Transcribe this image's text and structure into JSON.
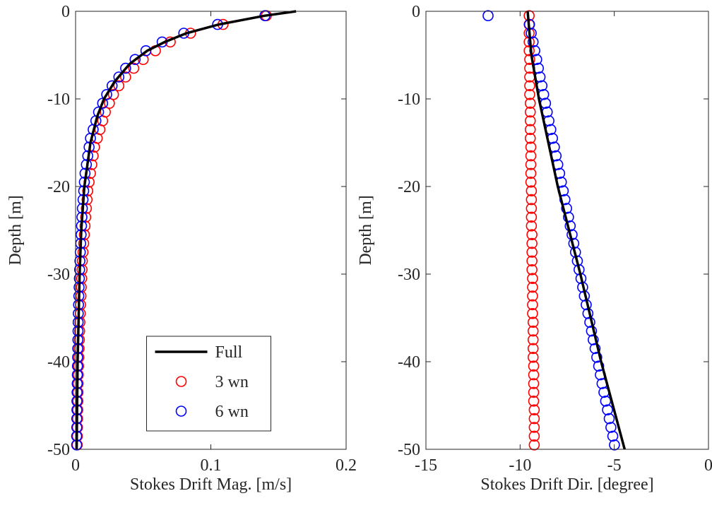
{
  "chart_data": [
    {
      "type": "line",
      "xlabel": "Stokes Drift Mag. [m/s]",
      "ylabel": "Depth [m]",
      "xlim": [
        0,
        0.2
      ],
      "ylim": [
        -50,
        0
      ],
      "xticks": [
        0,
        0.1,
        0.2
      ],
      "yticks": [
        -50,
        -40,
        -30,
        -20,
        -10,
        0
      ],
      "legend_loc": "lower center",
      "series": [
        {
          "name": "Full",
          "color": "#000000",
          "style": "line",
          "y": [
            0,
            -0.5,
            -1.5,
            -2.5,
            -3.5,
            -4.5,
            -6,
            -8,
            -10,
            -12,
            -15,
            -20,
            -25,
            -30,
            -40,
            -50
          ],
          "values": [
            0.163,
            0.14,
            0.106,
            0.082,
            0.066,
            0.053,
            0.04,
            0.029,
            0.021,
            0.016,
            0.011,
            0.0065,
            0.0042,
            0.003,
            0.0015,
            0.0008
          ]
        },
        {
          "name": "3 wn",
          "color": "#ff0000",
          "style": "marker",
          "y": [
            -0.5,
            -1.5,
            -2.5,
            -3.5,
            -4.5,
            -5.5,
            -6.5,
            -7.5,
            -8.5,
            -9.5,
            -10.5,
            -11.5,
            -12.5,
            -13.5,
            -14.5,
            -15.5,
            -16.5,
            -17.5,
            -18.5,
            -19.5,
            -20.5,
            -21.5,
            -22.5,
            -23.5,
            -24.5,
            -25.5,
            -26.5,
            -27.5,
            -28.5,
            -29.5,
            -30.5,
            -31.5,
            -32.5,
            -33.5,
            -34.5,
            -35.5,
            -36.5,
            -37.5,
            -38.5,
            -39.5,
            -40.5,
            -41.5,
            -42.5,
            -43.5,
            -44.5,
            -45.5,
            -46.5,
            -47.5,
            -48.5,
            -49.5
          ],
          "values": [
            0.141,
            0.109,
            0.085,
            0.07,
            0.059,
            0.05,
            0.043,
            0.037,
            0.032,
            0.028,
            0.025,
            0.022,
            0.02,
            0.018,
            0.016,
            0.014,
            0.013,
            0.012,
            0.011,
            0.01,
            0.009,
            0.0085,
            0.008,
            0.0075,
            0.007,
            0.0065,
            0.006,
            0.0055,
            0.005,
            0.0048,
            0.0045,
            0.0042,
            0.004,
            0.0037,
            0.0035,
            0.0032,
            0.003,
            0.0028,
            0.0026,
            0.0024,
            0.0022,
            0.002,
            0.0019,
            0.0018,
            0.0017,
            0.0016,
            0.0015,
            0.0014,
            0.0013,
            0.0012
          ]
        },
        {
          "name": "6 wn",
          "color": "#0000ff",
          "style": "marker",
          "y": [
            -0.5,
            -1.5,
            -2.5,
            -3.5,
            -4.5,
            -5.5,
            -6.5,
            -7.5,
            -8.5,
            -9.5,
            -10.5,
            -11.5,
            -12.5,
            -13.5,
            -14.5,
            -15.5,
            -16.5,
            -17.5,
            -18.5,
            -19.5,
            -20.5,
            -21.5,
            -22.5,
            -23.5,
            -24.5,
            -25.5,
            -26.5,
            -27.5,
            -28.5,
            -29.5,
            -30.5,
            -31.5,
            -32.5,
            -33.5,
            -34.5,
            -35.5,
            -36.5,
            -37.5,
            -38.5,
            -39.5,
            -40.5,
            -41.5,
            -42.5,
            -43.5,
            -44.5,
            -45.5,
            -46.5,
            -47.5,
            -48.5,
            -49.5
          ],
          "values": [
            0.14,
            0.105,
            0.08,
            0.064,
            0.052,
            0.044,
            0.037,
            0.032,
            0.027,
            0.023,
            0.02,
            0.017,
            0.015,
            0.013,
            0.011,
            0.01,
            0.009,
            0.008,
            0.007,
            0.0065,
            0.006,
            0.0055,
            0.005,
            0.0047,
            0.0044,
            0.0041,
            0.0038,
            0.0035,
            0.0032,
            0.003,
            0.0028,
            0.0026,
            0.0024,
            0.0022,
            0.002,
            0.0019,
            0.0018,
            0.0017,
            0.0016,
            0.0015,
            0.0014,
            0.0013,
            0.0012,
            0.0011,
            0.001,
            0.001,
            0.0009,
            0.0009,
            0.0008,
            0.0008
          ]
        }
      ]
    },
    {
      "type": "line",
      "xlabel": "Stokes Drift Dir. [degree]",
      "ylabel": "Depth [m]",
      "xlim": [
        -15,
        0
      ],
      "ylim": [
        -50,
        0
      ],
      "xticks": [
        -15,
        -10,
        -5,
        0
      ],
      "yticks": [
        -50,
        -40,
        -30,
        -20,
        -10,
        0
      ],
      "series": [
        {
          "name": "Full",
          "color": "#000000",
          "style": "line",
          "y": [
            0,
            -5,
            -10,
            -20,
            -30,
            -40,
            -50
          ],
          "values": [
            -9.6,
            -9.4,
            -9.0,
            -8.0,
            -6.8,
            -5.7,
            -4.45
          ]
        },
        {
          "name": "3 wn",
          "color": "#ff0000",
          "style": "marker",
          "y": [
            -0.5,
            -1.5,
            -2.5,
            -3.5,
            -4.5,
            -5.5,
            -6.5,
            -7.5,
            -8.5,
            -9.5,
            -10.5,
            -11.5,
            -12.5,
            -13.5,
            -14.5,
            -15.5,
            -16.5,
            -17.5,
            -18.5,
            -19.5,
            -20.5,
            -21.5,
            -22.5,
            -23.5,
            -24.5,
            -25.5,
            -26.5,
            -27.5,
            -28.5,
            -29.5,
            -30.5,
            -31.5,
            -32.5,
            -33.5,
            -34.5,
            -35.5,
            -36.5,
            -37.5,
            -38.5,
            -39.5,
            -40.5,
            -41.5,
            -42.5,
            -43.5,
            -44.5,
            -45.5,
            -46.5,
            -47.5,
            -48.5,
            -49.5
          ],
          "values": [
            -9.52,
            -9.52,
            -9.52,
            -9.52,
            -9.52,
            -9.49,
            -9.49,
            -9.49,
            -9.49,
            -9.49,
            -9.46,
            -9.46,
            -9.46,
            -9.46,
            -9.46,
            -9.43,
            -9.43,
            -9.43,
            -9.43,
            -9.43,
            -9.4,
            -9.4,
            -9.4,
            -9.4,
            -9.4,
            -9.37,
            -9.37,
            -9.37,
            -9.37,
            -9.37,
            -9.34,
            -9.34,
            -9.34,
            -9.34,
            -9.34,
            -9.31,
            -9.31,
            -9.31,
            -9.31,
            -9.31,
            -9.28,
            -9.28,
            -9.28,
            -9.28,
            -9.28,
            -9.25,
            -9.25,
            -9.25,
            -9.25,
            -9.25
          ]
        },
        {
          "name": "6 wn",
          "color": "#0000ff",
          "style": "marker",
          "y": [
            -0.5,
            -1.5,
            -2.5,
            -3.5,
            -4.5,
            -5.5,
            -6.5,
            -7.5,
            -8.5,
            -9.5,
            -10.5,
            -11.5,
            -12.5,
            -13.5,
            -14.5,
            -15.5,
            -16.5,
            -17.5,
            -18.5,
            -19.5,
            -20.5,
            -21.5,
            -22.5,
            -23.5,
            -24.5,
            -25.5,
            -26.5,
            -27.5,
            -28.5,
            -29.5,
            -30.5,
            -31.5,
            -32.5,
            -33.5,
            -34.5,
            -35.5,
            -36.5,
            -37.5,
            -38.5,
            -39.5,
            -40.5,
            -41.5,
            -42.5,
            -43.5,
            -44.5,
            -45.5,
            -46.5,
            -47.5,
            -48.5,
            -49.5
          ],
          "values": [
            -11.7,
            -9.5,
            -9.41,
            -9.31,
            -9.22,
            -9.12,
            -9.03,
            -8.94,
            -8.84,
            -8.75,
            -8.65,
            -8.56,
            -8.47,
            -8.37,
            -8.28,
            -8.18,
            -8.09,
            -8.0,
            -7.9,
            -7.81,
            -7.71,
            -7.62,
            -7.53,
            -7.43,
            -7.34,
            -7.24,
            -7.15,
            -7.06,
            -6.96,
            -6.87,
            -6.77,
            -6.68,
            -6.59,
            -6.49,
            -6.4,
            -6.3,
            -6.21,
            -6.12,
            -6.02,
            -5.93,
            -5.83,
            -5.74,
            -5.65,
            -5.55,
            -5.46,
            -5.36,
            -5.27,
            -5.18,
            -5.08,
            -4.99
          ]
        }
      ]
    }
  ]
}
